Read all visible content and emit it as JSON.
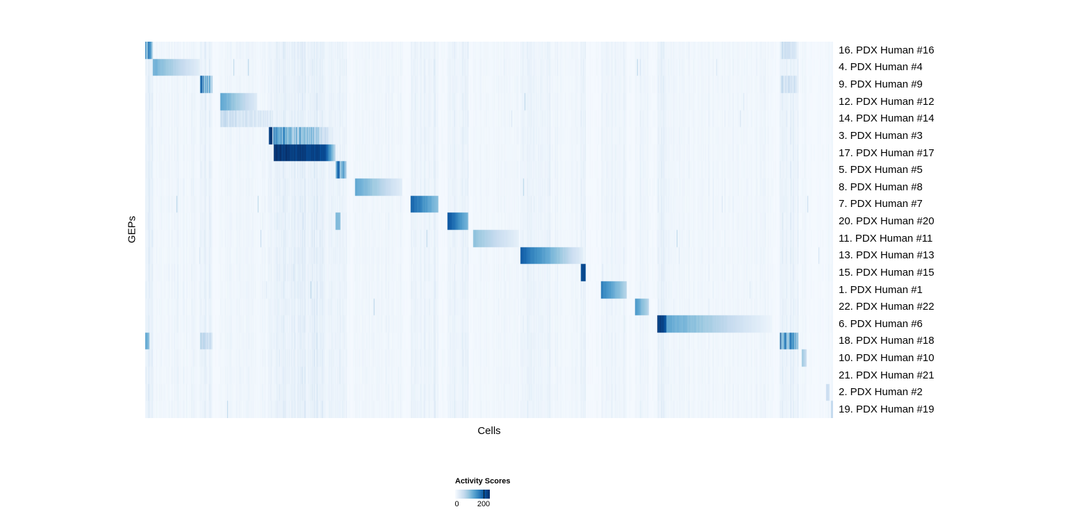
{
  "figure": {
    "background": "#ffffff",
    "text_color": "#000000"
  },
  "chart_data": {
    "type": "heatmap",
    "title": "",
    "xlabel": "Cells",
    "ylabel": "GEPs",
    "colormap": "Blues",
    "colormap_stops": [
      "#f7fbff",
      "#deebf7",
      "#c6dbef",
      "#9ecae1",
      "#6baed6",
      "#4292c6",
      "#2171b5",
      "#08519c",
      "#08306b"
    ],
    "colorbar": {
      "title": "Activity Scores",
      "tick_labels": [
        "0",
        "200"
      ],
      "tick_positions": [
        0.05,
        0.82
      ]
    },
    "value_range": [
      0,
      245
    ],
    "n_rows": 22,
    "grid": false,
    "legend_position": "bottom",
    "rows": [
      {
        "label": "16. PDX Human #16",
        "blocks": [
          {
            "s": 0.0,
            "e": 0.011,
            "i0": 0.92,
            "i1": 0.55,
            "striped": true
          },
          {
            "s": 0.925,
            "e": 0.947,
            "i0": 0.28,
            "i1": 0.2,
            "striped": true
          }
        ]
      },
      {
        "label": "4. PDX Human #4",
        "blocks": [
          {
            "s": 0.012,
            "e": 0.079,
            "i0": 0.5,
            "i1": 0.1,
            "striped": false
          }
        ]
      },
      {
        "label": "9. PDX Human #9",
        "blocks": [
          {
            "s": 0.08,
            "e": 0.097,
            "i0": 0.88,
            "i1": 0.45,
            "striped": true
          },
          {
            "s": 0.925,
            "e": 0.947,
            "i0": 0.3,
            "i1": 0.2,
            "striped": true
          }
        ]
      },
      {
        "label": "12. PDX Human #12",
        "blocks": [
          {
            "s": 0.11,
            "e": 0.162,
            "i0": 0.55,
            "i1": 0.12,
            "striped": false
          }
        ]
      },
      {
        "label": "14. PDX Human #14",
        "blocks": [
          {
            "s": 0.11,
            "e": 0.185,
            "i0": 0.3,
            "i1": 0.16,
            "striped": true
          }
        ]
      },
      {
        "label": "3. PDX Human #3",
        "blocks": [
          {
            "s": 0.18,
            "e": 0.184,
            "i0": 0.97,
            "i1": 0.97,
            "striped": false
          },
          {
            "s": 0.186,
            "e": 0.256,
            "i0": 0.78,
            "i1": 0.42,
            "striped": true
          },
          {
            "s": 0.256,
            "e": 0.272,
            "i0": 0.35,
            "i1": 0.1,
            "striped": true
          }
        ]
      },
      {
        "label": "17. PDX Human #17",
        "blocks": [
          {
            "s": 0.187,
            "e": 0.262,
            "i0": 1.0,
            "i1": 0.93,
            "striped": false
          },
          {
            "s": 0.262,
            "e": 0.276,
            "i0": 0.9,
            "i1": 0.22,
            "striped": false
          }
        ]
      },
      {
        "label": "5. PDX Human #5",
        "blocks": [
          {
            "s": 0.277,
            "e": 0.292,
            "i0": 0.88,
            "i1": 0.5,
            "striped": true
          }
        ]
      },
      {
        "label": "8. PDX Human #8",
        "blocks": [
          {
            "s": 0.306,
            "e": 0.373,
            "i0": 0.55,
            "i1": 0.1,
            "striped": false
          }
        ]
      },
      {
        "label": "7. PDX Human #7",
        "blocks": [
          {
            "s": 0.386,
            "e": 0.426,
            "i0": 0.82,
            "i1": 0.4,
            "striped": false
          }
        ]
      },
      {
        "label": "20. PDX Human #20",
        "blocks": [
          {
            "s": 0.277,
            "e": 0.283,
            "i0": 0.45,
            "i1": 0.45,
            "striped": false
          },
          {
            "s": 0.44,
            "e": 0.469,
            "i0": 0.88,
            "i1": 0.45,
            "striped": false
          }
        ]
      },
      {
        "label": "11. PDX Human #11",
        "blocks": [
          {
            "s": 0.477,
            "e": 0.543,
            "i0": 0.42,
            "i1": 0.08,
            "striped": false
          }
        ]
      },
      {
        "label": "13. PDX Human #13",
        "blocks": [
          {
            "s": 0.546,
            "e": 0.588,
            "i0": 0.82,
            "i1": 0.5,
            "striped": false
          },
          {
            "s": 0.588,
            "e": 0.636,
            "i0": 0.5,
            "i1": 0.1,
            "striped": false
          }
        ]
      },
      {
        "label": "15. PDX Human #15",
        "blocks": [
          {
            "s": 0.634,
            "e": 0.64,
            "i0": 0.92,
            "i1": 0.92,
            "striped": false
          }
        ]
      },
      {
        "label": "1. PDX Human #1",
        "blocks": [
          {
            "s": 0.663,
            "e": 0.699,
            "i0": 0.72,
            "i1": 0.3,
            "striped": false
          }
        ]
      },
      {
        "label": "22. PDX Human #22",
        "blocks": [
          {
            "s": 0.713,
            "e": 0.732,
            "i0": 0.6,
            "i1": 0.28,
            "striped": false
          }
        ]
      },
      {
        "label": "6. PDX Human #6",
        "blocks": [
          {
            "s": 0.745,
            "e": 0.757,
            "i0": 0.97,
            "i1": 0.9,
            "striped": false
          },
          {
            "s": 0.757,
            "e": 0.911,
            "i0": 0.55,
            "i1": 0.05,
            "striped": false
          }
        ]
      },
      {
        "label": "18. PDX Human #18",
        "blocks": [
          {
            "s": 0.0,
            "e": 0.006,
            "i0": 0.55,
            "i1": 0.4,
            "striped": false
          },
          {
            "s": 0.08,
            "e": 0.097,
            "i0": 0.35,
            "i1": 0.22,
            "striped": true
          },
          {
            "s": 0.923,
            "e": 0.949,
            "i0": 0.92,
            "i1": 0.55,
            "striped": true
          }
        ]
      },
      {
        "label": "10. PDX Human #10",
        "blocks": [
          {
            "s": 0.955,
            "e": 0.961,
            "i0": 0.38,
            "i1": 0.22,
            "striped": false
          }
        ]
      },
      {
        "label": "21. PDX Human #21",
        "blocks": []
      },
      {
        "label": "2. PDX Human #2",
        "blocks": [
          {
            "s": 0.99,
            "e": 0.994,
            "i0": 0.25,
            "i1": 0.18,
            "striped": false
          }
        ]
      },
      {
        "label": "19. PDX Human #19",
        "blocks": [
          {
            "s": 0.997,
            "e": 1.0,
            "i0": 0.28,
            "i1": 0.22,
            "striped": false
          }
        ]
      }
    ]
  }
}
